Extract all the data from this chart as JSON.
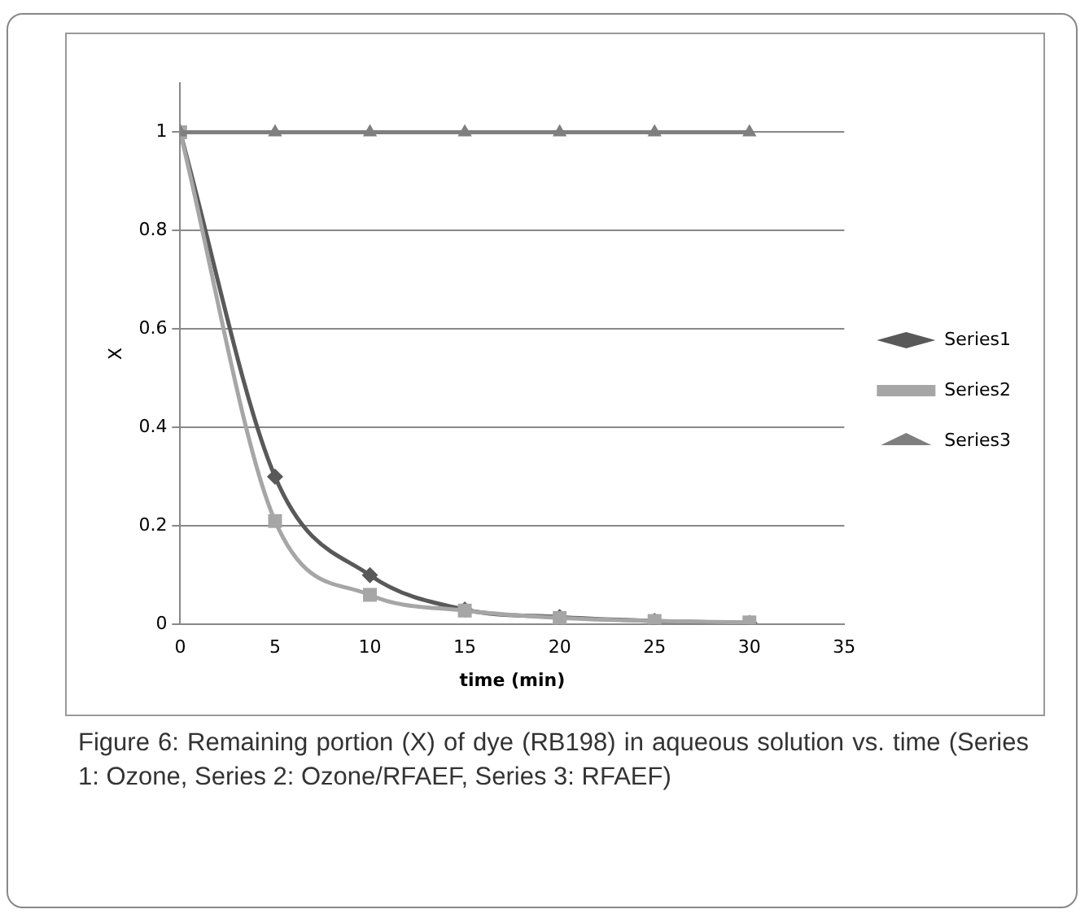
{
  "chart_data": {
    "type": "line",
    "xlabel": "time (min)",
    "ylabel": "X",
    "x": [
      0,
      5,
      10,
      15,
      20,
      25,
      30
    ],
    "series": [
      {
        "name": "Series1",
        "color": "#595959",
        "marker": "diamond",
        "values": [
          1,
          0.3,
          0.1,
          0.03,
          0.015,
          0.007,
          0.003
        ]
      },
      {
        "name": "Series2",
        "color": "#a6a6a6",
        "marker": "square",
        "values": [
          1,
          0.21,
          0.06,
          0.028,
          0.013,
          0.007,
          0.004
        ]
      },
      {
        "name": "Series3",
        "color": "#7f7f7f",
        "marker": "triangle",
        "values": [
          1,
          1,
          1,
          1,
          1,
          1,
          1
        ]
      }
    ],
    "xlim": [
      0,
      35
    ],
    "xticks": [
      0,
      5,
      10,
      15,
      20,
      25,
      30,
      35
    ],
    "ylim": [
      0,
      1.1
    ],
    "yticks": [
      0,
      0.2,
      0.4,
      0.6,
      0.8,
      1
    ],
    "grid": "y",
    "legend": "right",
    "annotations": [
      "Figure 6: Remaining portion (X) of dye (RB198) in aqueous solution vs. time (Series 1: Ozone, Series 2: Ozone/RFAEF, Series 3: RFAEF)"
    ]
  }
}
